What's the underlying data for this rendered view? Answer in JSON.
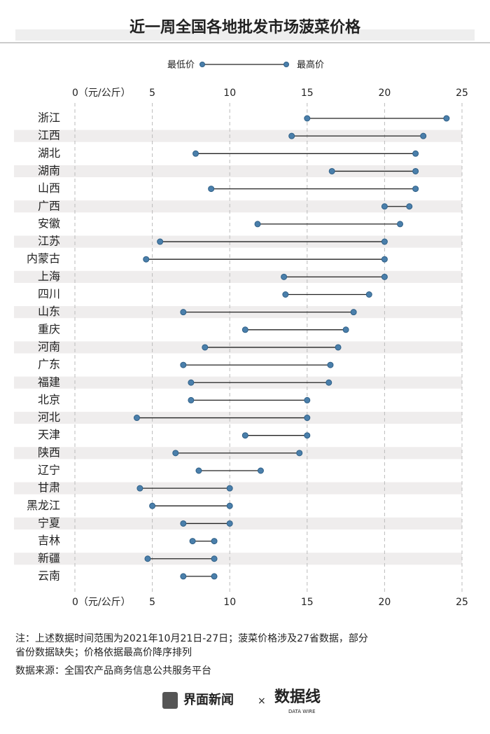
{
  "chart_data": {
    "type": "dumbbell",
    "title": "近一周全国各地批发市场菠菜价格",
    "categories": [
      "浙江",
      "江西",
      "湖北",
      "湖南",
      "山西",
      "广西",
      "安徽",
      "江苏",
      "内蒙古",
      "上海",
      "四川",
      "山东",
      "重庆",
      "河南",
      "广东",
      "福建",
      "北京",
      "河北",
      "天津",
      "陕西",
      "辽宁",
      "甘肃",
      "黑龙江",
      "宁夏",
      "吉林",
      "新疆",
      "云南"
    ],
    "series": [
      {
        "name": "最低价",
        "color": "#4a7fab",
        "values": [
          15,
          14,
          7.8,
          16.6,
          8.8,
          20,
          11.8,
          5.5,
          4.6,
          13.5,
          13.6,
          7,
          11,
          8.4,
          7,
          7.5,
          7.5,
          4,
          11,
          6.5,
          8,
          4.2,
          5,
          7,
          7.6,
          4.7,
          7
        ]
      },
      {
        "name": "最高价",
        "color": "#4a7fab",
        "values": [
          24,
          22.5,
          22,
          22,
          22,
          21.6,
          21,
          20,
          20,
          20,
          19,
          18,
          17.5,
          17,
          16.5,
          16.4,
          15,
          15,
          15,
          14.5,
          12,
          10,
          10,
          10,
          9,
          9,
          9
        ]
      }
    ],
    "xlim": [
      0,
      25
    ],
    "xticks": [
      {
        "value": 0,
        "label": "0（元/公斤）"
      },
      5,
      10,
      15,
      20,
      25
    ],
    "grid": true,
    "note": "注：上述数据时间范围为2021年10月21日-27日；菠菜价格涉及27省数据，部分省份数据缺失；价格依据最高价降序排列",
    "source": "数据来源：全国农产品商务信息公共服务平台",
    "footer": {
      "brand": "界面新闻",
      "separator": "×",
      "partner": "数据线",
      "partner_sub": "DATA WIRE"
    }
  }
}
